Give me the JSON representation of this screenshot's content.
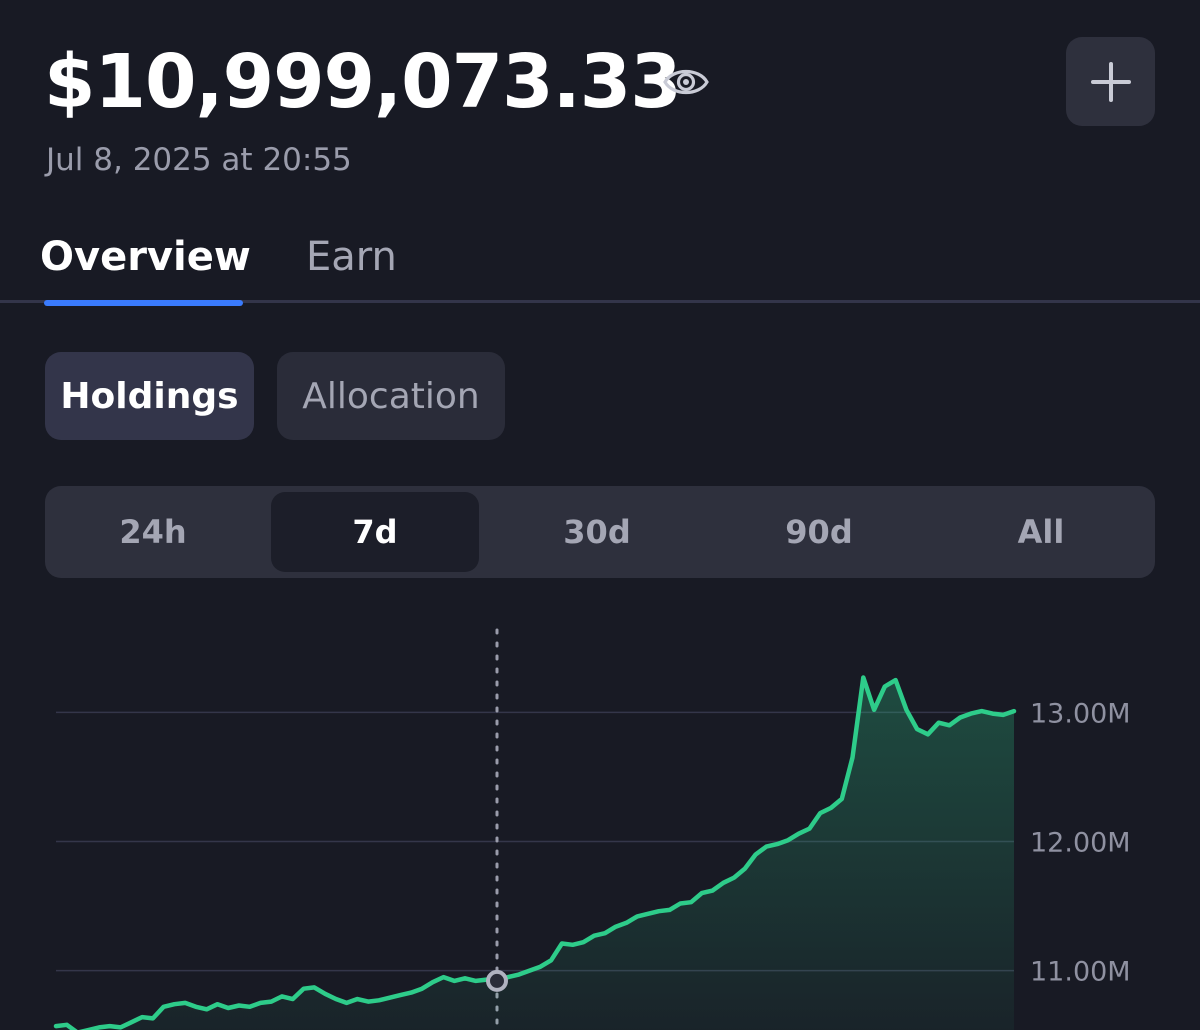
{
  "header": {
    "balance": "$10,999,073.33",
    "timestamp": "Jul 8, 2025 at 20:55",
    "eye_icon": "eye-icon",
    "add_icon": "plus-icon"
  },
  "tabs": [
    {
      "label": "Overview",
      "selected": true
    },
    {
      "label": "Earn",
      "selected": false
    }
  ],
  "view_toggle": [
    {
      "label": "Holdings",
      "selected": true
    },
    {
      "label": "Allocation",
      "selected": false
    }
  ],
  "range_options": [
    {
      "label": "24h",
      "selected": false
    },
    {
      "label": "7d",
      "selected": true
    },
    {
      "label": "30d",
      "selected": false
    },
    {
      "label": "90d",
      "selected": false
    },
    {
      "label": "All",
      "selected": false
    }
  ],
  "colors": {
    "background": "#181a24",
    "accent": "#3a7bfd",
    "line": "#2ecc8a"
  },
  "chart_data": {
    "type": "area",
    "y_tick_labels": [
      "13.00M",
      "12.00M",
      "11.00M"
    ],
    "y_ticks": [
      13000000,
      12000000,
      11000000
    ],
    "ylim": [
      10540000,
      13870000
    ],
    "grid": true,
    "series": [
      {
        "values": [
          10570000,
          10580000,
          10520000,
          10540000,
          10560000,
          10570000,
          10560000,
          10600000,
          10640000,
          10630000,
          10720000,
          10740000,
          10750000,
          10720000,
          10700000,
          10740000,
          10710000,
          10730000,
          10720000,
          10750000,
          10760000,
          10800000,
          10780000,
          10860000,
          10870000,
          10820000,
          10780000,
          10750000,
          10780000,
          10760000,
          10770000,
          10790000,
          10810000,
          10830000,
          10860000,
          10910000,
          10950000,
          10920000,
          10940000,
          10920000,
          10930000,
          10920000,
          10950000,
          10970000,
          11000000,
          11030000,
          11080000,
          11210000,
          11200000,
          11220000,
          11270000,
          11290000,
          11340000,
          11370000,
          11420000,
          11440000,
          11460000,
          11470000,
          11520000,
          11530000,
          11600000,
          11620000,
          11680000,
          11720000,
          11790000,
          11900000,
          11960000,
          11980000,
          12010000,
          12060000,
          12100000,
          12220000,
          12260000,
          12330000,
          12650000,
          13270000,
          13020000,
          13200000,
          13250000,
          13020000,
          12870000,
          12830000,
          12920000,
          12900000,
          12960000,
          12990000,
          13010000,
          12990000,
          12980000,
          13010000
        ]
      }
    ]
  }
}
